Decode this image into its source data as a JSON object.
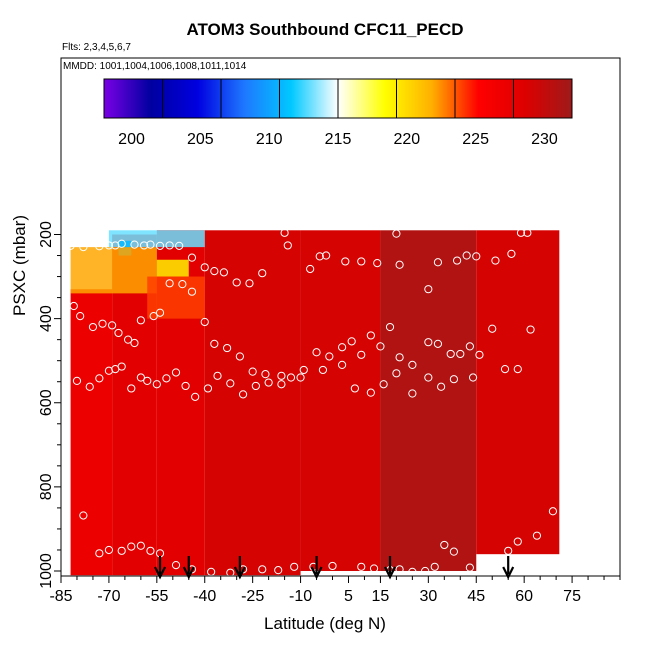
{
  "chart_data": {
    "type": "heatmap",
    "title": "ATOM3 Southbound CFC11_PECD",
    "notes": {
      "flights": "Flts: 2,3,4,5,6,7",
      "dates": "MMDD: 1001,1004,1006,1008,1011,1014"
    },
    "xlabel": "Latitude (deg N)",
    "ylabel": "PSXC (mbar)",
    "xlim": [
      -85,
      90
    ],
    "ylim": [
      1000,
      100
    ],
    "x_ticks": [
      -85,
      -70,
      -55,
      -40,
      -25,
      -10,
      5,
      15,
      30,
      45,
      60,
      75
    ],
    "y_ticks": [
      200,
      400,
      600,
      800,
      1000
    ],
    "colorbar": {
      "range": [
        198,
        232
      ],
      "ticks": [
        200,
        205,
        210,
        215,
        220,
        225,
        230
      ],
      "colors": [
        "#7a00e6",
        "#0000a0",
        "#0000e0",
        "#1e78ff",
        "#00c8ff",
        "#ffffff",
        "#ffff00",
        "#ffb000",
        "#ff0000",
        "#dd0000",
        "#9e1a1a"
      ],
      "bands": 8
    },
    "field": {
      "description_free": true,
      "lat_range": [
        -82,
        71
      ],
      "p_range": [
        190,
        1010
      ],
      "cells": [
        {
          "lat0": -82,
          "lat1": -69,
          "p0": 330,
          "p1": 1010,
          "value": 227
        },
        {
          "lat0": -69,
          "lat1": -55,
          "p0": 200,
          "p1": 1010,
          "value": 228
        },
        {
          "lat0": -55,
          "lat1": -40,
          "p0": 190,
          "p1": 1010,
          "value": 228
        },
        {
          "lat0": -40,
          "lat1": -10,
          "p0": 190,
          "p1": 1010,
          "value": 229
        },
        {
          "lat0": -10,
          "lat1": 15,
          "p0": 190,
          "p1": 1000,
          "value": 229
        },
        {
          "lat0": 15,
          "lat1": 45,
          "p0": 190,
          "p1": 1000,
          "value": 231
        },
        {
          "lat0": 45,
          "lat1": 71,
          "p0": 190,
          "p1": 960,
          "value": 229
        }
      ],
      "upper_features": [
        {
          "lat0": -70,
          "lat1": -40,
          "p0": 190,
          "p1": 230,
          "value": 213
        },
        {
          "lat0": -67,
          "lat1": -63,
          "p0": 215,
          "p1": 250,
          "value": 211
        },
        {
          "lat0": -82,
          "lat1": -55,
          "p0": 230,
          "p1": 340,
          "value": 222
        },
        {
          "lat0": -55,
          "lat1": -45,
          "p0": 260,
          "p1": 300,
          "value": 219
        },
        {
          "lat0": -58,
          "lat1": -40,
          "p0": 300,
          "p1": 400,
          "value": 224
        }
      ]
    },
    "sample_points": [
      [
        -82,
        227
      ],
      [
        -78,
        230
      ],
      [
        -73,
        228
      ],
      [
        -70,
        226
      ],
      [
        -68,
        226
      ],
      [
        -66,
        222
      ],
      [
        -62,
        224
      ],
      [
        -59,
        226
      ],
      [
        -57,
        224
      ],
      [
        -54,
        227
      ],
      [
        -51,
        226
      ],
      [
        -48,
        227
      ],
      [
        -44,
        255
      ],
      [
        -40,
        278
      ],
      [
        -37,
        287
      ],
      [
        -34,
        290
      ],
      [
        -30,
        314
      ],
      [
        -26,
        316
      ],
      [
        -22,
        292
      ],
      [
        -15,
        196
      ],
      [
        -14,
        226
      ],
      [
        -7,
        282
      ],
      [
        -4,
        252
      ],
      [
        -2,
        250
      ],
      [
        4,
        264
      ],
      [
        9,
        264
      ],
      [
        14,
        268
      ],
      [
        20,
        198
      ],
      [
        21,
        272
      ],
      [
        30,
        330
      ],
      [
        33,
        266
      ],
      [
        39,
        262
      ],
      [
        42,
        250
      ],
      [
        45,
        252
      ],
      [
        51,
        262
      ],
      [
        56,
        246
      ],
      [
        59,
        196
      ],
      [
        61,
        196
      ],
      [
        -81,
        370
      ],
      [
        -79,
        394
      ],
      [
        -75,
        420
      ],
      [
        -72,
        412
      ],
      [
        -69,
        416
      ],
      [
        -67,
        434
      ],
      [
        -64,
        450
      ],
      [
        -62,
        458
      ],
      [
        -60,
        404
      ],
      [
        -56,
        394
      ],
      [
        -54,
        386
      ],
      [
        -51,
        316
      ],
      [
        -47,
        318
      ],
      [
        -44,
        336
      ],
      [
        -40,
        408
      ],
      [
        -37,
        460
      ],
      [
        -33,
        470
      ],
      [
        -29,
        490
      ],
      [
        -25,
        526
      ],
      [
        -21,
        532
      ],
      [
        -16,
        536
      ],
      [
        -13,
        540
      ],
      [
        -9,
        522
      ],
      [
        -5,
        480
      ],
      [
        -1,
        490
      ],
      [
        3,
        468
      ],
      [
        6,
        454
      ],
      [
        9,
        486
      ],
      [
        12,
        440
      ],
      [
        15,
        466
      ],
      [
        18,
        420
      ],
      [
        21,
        492
      ],
      [
        25,
        510
      ],
      [
        30,
        456
      ],
      [
        33,
        460
      ],
      [
        37,
        484
      ],
      [
        40,
        484
      ],
      [
        43,
        466
      ],
      [
        46,
        486
      ],
      [
        50,
        424
      ],
      [
        54,
        520
      ],
      [
        58,
        520
      ],
      [
        62,
        426
      ],
      [
        -80,
        548
      ],
      [
        -76,
        562
      ],
      [
        -73,
        542
      ],
      [
        -70,
        524
      ],
      [
        -68,
        520
      ],
      [
        -66,
        514
      ],
      [
        -63,
        566
      ],
      [
        -60,
        540
      ],
      [
        -58,
        548
      ],
      [
        -55,
        556
      ],
      [
        -52,
        542
      ],
      [
        -49,
        528
      ],
      [
        -46,
        560
      ],
      [
        -43,
        586
      ],
      [
        -39,
        566
      ],
      [
        -36,
        536
      ],
      [
        -32,
        554
      ],
      [
        -28,
        580
      ],
      [
        -24,
        560
      ],
      [
        -20,
        552
      ],
      [
        -16,
        556
      ],
      [
        -10,
        540
      ],
      [
        -3,
        522
      ],
      [
        3,
        510
      ],
      [
        7,
        566
      ],
      [
        12,
        576
      ],
      [
        16,
        556
      ],
      [
        20,
        530
      ],
      [
        25,
        578
      ],
      [
        30,
        540
      ],
      [
        34,
        562
      ],
      [
        38,
        544
      ],
      [
        44,
        540
      ],
      [
        -78,
        868
      ],
      [
        -73,
        958
      ],
      [
        -70,
        950
      ],
      [
        -66,
        952
      ],
      [
        -63,
        942
      ],
      [
        -60,
        940
      ],
      [
        -57,
        952
      ],
      [
        -54,
        958
      ],
      [
        -49,
        986
      ],
      [
        -44,
        996
      ],
      [
        -38,
        1002
      ],
      [
        -32,
        1004
      ],
      [
        -28,
        996
      ],
      [
        -22,
        996
      ],
      [
        -17,
        998
      ],
      [
        -12,
        990
      ],
      [
        -6,
        990
      ],
      [
        0,
        988
      ],
      [
        9,
        990
      ],
      [
        13,
        994
      ],
      [
        18,
        998
      ],
      [
        21,
        996
      ],
      [
        25,
        1002
      ],
      [
        29,
        1000
      ],
      [
        32,
        990
      ],
      [
        35,
        938
      ],
      [
        38,
        954
      ],
      [
        43,
        992
      ],
      [
        47,
        1004
      ],
      [
        50,
        998
      ],
      [
        55,
        952
      ],
      [
        58,
        930
      ],
      [
        64,
        916
      ],
      [
        69,
        858
      ]
    ],
    "arrow_latitudes": [
      -54,
      -45,
      -29,
      -5,
      18,
      55
    ]
  }
}
